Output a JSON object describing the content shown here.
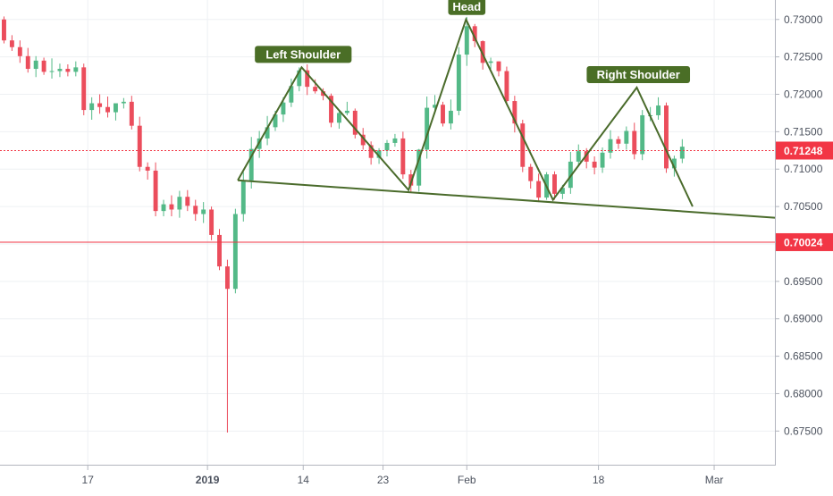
{
  "colors": {
    "up": "#53b987",
    "down": "#eb4d5c",
    "pattern": "#4a6b2b",
    "label_bg": "#4a6e26",
    "label_text": "#ffffff",
    "grid": "#eef0f3",
    "axis_text": "#4c525e",
    "support_line": "#f23645"
  },
  "chart_data": {
    "type": "candlestick",
    "title": "",
    "xlabel": "",
    "ylabel": "",
    "ylim": [
      0.6705,
      0.7326
    ],
    "xlim": [
      0,
      97
    ],
    "grid": true,
    "y_ticks": [
      "0.73000",
      "0.72500",
      "0.72000",
      "0.71500",
      "0.71000",
      "0.70500",
      "0.70000",
      "0.69500",
      "0.69000",
      "0.68500",
      "0.68000",
      "0.67500"
    ],
    "x_ticks": [
      {
        "label": "17",
        "bold": false,
        "x": 11
      },
      {
        "label": "2019",
        "bold": true,
        "x": 26
      },
      {
        "label": "14",
        "bold": false,
        "x": 38
      },
      {
        "label": "23",
        "bold": false,
        "x": 48
      },
      {
        "label": "Feb",
        "bold": false,
        "x": 58.5
      },
      {
        "label": "18",
        "bold": false,
        "x": 75
      },
      {
        "label": "Mar",
        "bold": false,
        "x": 89.5
      }
    ],
    "price_labels": [
      {
        "value": "0.71248",
        "price": 0.71248,
        "dashed": true,
        "color": "#f23645"
      },
      {
        "value": "0.70024",
        "price": 0.70024,
        "dashed": false,
        "color": "#f23645"
      }
    ],
    "annotations": [
      {
        "text": "Left Shoulder",
        "x": 38,
        "y": 0.7236
      },
      {
        "text": "Head",
        "x": 58.5,
        "y": 0.73
      },
      {
        "text": "Right Shoulder",
        "x": 80,
        "y": 0.7209
      }
    ],
    "pattern_path": [
      [
        29.8,
        0.7085
      ],
      [
        37.8,
        0.7236
      ],
      [
        51.2,
        0.7072
      ],
      [
        58.4,
        0.73
      ],
      [
        69.3,
        0.7059
      ],
      [
        79.8,
        0.7209
      ],
      [
        86.8,
        0.705
      ]
    ],
    "neckline": [
      [
        29.8,
        0.7085
      ],
      [
        98.5,
        0.7034
      ]
    ],
    "close": [
      0.7272,
      0.7263,
      0.7251,
      0.7234,
      0.7245,
      0.723,
      0.7231,
      0.7234,
      0.723,
      0.7236,
      0.7179,
      0.7188,
      0.7183,
      0.7176,
      0.7188,
      0.719,
      0.7158,
      0.7103,
      0.7098,
      0.7044,
      0.7053,
      0.7046,
      0.7063,
      0.7051,
      0.704,
      0.7046,
      0.7012,
      0.697,
      0.694,
      0.704,
      0.7085,
      0.7127,
      0.7141,
      0.7156,
      0.7173,
      0.7189,
      0.7211,
      0.7232,
      0.721,
      0.7204,
      0.7198,
      0.7162,
      0.7175,
      0.7178,
      0.7146,
      0.7132,
      0.7115,
      0.7125,
      0.7135,
      0.7141,
      0.7093,
      0.7078,
      0.7126,
      0.7182,
      0.7186,
      0.7161,
      0.7178,
      0.7253,
      0.7291,
      0.7271,
      0.7242,
      0.7244,
      0.7231,
      0.7191,
      0.7161,
      0.7103,
      0.7084,
      0.7062,
      0.7093,
      0.7067,
      0.7075,
      0.711,
      0.7124,
      0.711,
      0.7102,
      0.7122,
      0.714,
      0.7134,
      0.7151,
      0.712,
      0.7172,
      0.7172,
      0.7185,
      0.7101,
      0.7114,
      0.713
    ],
    "open": [
      0.73,
      0.7272,
      0.7263,
      0.7251,
      0.7234,
      0.7245,
      0.723,
      0.7231,
      0.7234,
      0.723,
      0.7236,
      0.7179,
      0.7188,
      0.7183,
      0.7176,
      0.7188,
      0.719,
      0.7158,
      0.7103,
      0.7098,
      0.7044,
      0.7053,
      0.7046,
      0.7063,
      0.7051,
      0.704,
      0.7046,
      0.7012,
      0.697,
      0.694,
      0.704,
      0.7085,
      0.7127,
      0.7141,
      0.7156,
      0.7173,
      0.7189,
      0.7211,
      0.7232,
      0.721,
      0.7204,
      0.7198,
      0.7162,
      0.7175,
      0.7178,
      0.7146,
      0.7132,
      0.7115,
      0.7125,
      0.7135,
      0.7141,
      0.7093,
      0.7078,
      0.7126,
      0.7182,
      0.7186,
      0.7161,
      0.7178,
      0.7253,
      0.7291,
      0.7271,
      0.7242,
      0.7244,
      0.7231,
      0.7191,
      0.7161,
      0.7103,
      0.7084,
      0.7062,
      0.7093,
      0.7067,
      0.7075,
      0.711,
      0.7124,
      0.711,
      0.7102,
      0.7122,
      0.714,
      0.7134,
      0.7151,
      0.712,
      0.7172,
      0.7172,
      0.7185,
      0.7101,
      0.7114
    ],
    "high": [
      0.7304,
      0.7279,
      0.7272,
      0.7262,
      0.7251,
      0.7249,
      0.7248,
      0.7241,
      0.724,
      0.7244,
      0.7241,
      0.7196,
      0.72,
      0.7197,
      0.7187,
      0.7195,
      0.7198,
      0.717,
      0.7109,
      0.7109,
      0.7059,
      0.7065,
      0.7071,
      0.7072,
      0.7059,
      0.7056,
      0.705,
      0.702,
      0.6979,
      0.7047,
      0.7096,
      0.7143,
      0.7151,
      0.7171,
      0.7178,
      0.7196,
      0.7221,
      0.7236,
      0.724,
      0.722,
      0.7208,
      0.7201,
      0.7178,
      0.719,
      0.7181,
      0.7155,
      0.7137,
      0.7128,
      0.7139,
      0.7147,
      0.715,
      0.7099,
      0.7127,
      0.7197,
      0.7199,
      0.719,
      0.7193,
      0.7263,
      0.7303,
      0.7294,
      0.7272,
      0.7249,
      0.7244,
      0.7237,
      0.7198,
      0.7166,
      0.7107,
      0.7094,
      0.7096,
      0.7097,
      0.7079,
      0.7123,
      0.7133,
      0.7128,
      0.7117,
      0.7129,
      0.7152,
      0.7144,
      0.7157,
      0.7162,
      0.7179,
      0.7183,
      0.7196,
      0.7189,
      0.7118,
      0.714
    ],
    "low": [
      0.7268,
      0.7258,
      0.7242,
      0.7229,
      0.7223,
      0.7226,
      0.7221,
      0.7223,
      0.7224,
      0.7224,
      0.7172,
      0.7166,
      0.7174,
      0.7169,
      0.7165,
      0.7181,
      0.7153,
      0.7097,
      0.7086,
      0.7037,
      0.7037,
      0.7037,
      0.7035,
      0.7044,
      0.7031,
      0.7028,
      0.7005,
      0.6965,
      0.6748,
      0.6934,
      0.703,
      0.7074,
      0.7115,
      0.7132,
      0.7151,
      0.7163,
      0.7183,
      0.7204,
      0.7199,
      0.7201,
      0.7192,
      0.7156,
      0.7154,
      0.7172,
      0.7141,
      0.7126,
      0.7106,
      0.7107,
      0.7117,
      0.713,
      0.7087,
      0.7069,
      0.707,
      0.7114,
      0.7174,
      0.7157,
      0.7153,
      0.7172,
      0.7238,
      0.7263,
      0.7233,
      0.7234,
      0.7224,
      0.7185,
      0.7149,
      0.7096,
      0.7074,
      0.7056,
      0.7059,
      0.7059,
      0.706,
      0.7067,
      0.7105,
      0.7101,
      0.7093,
      0.7095,
      0.7114,
      0.7127,
      0.7126,
      0.7113,
      0.7112,
      0.7164,
      0.7166,
      0.7095,
      0.709,
      0.7108
    ]
  }
}
